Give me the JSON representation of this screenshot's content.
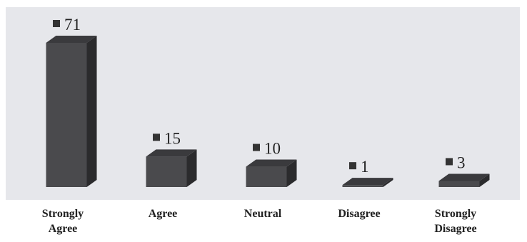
{
  "chart_data": {
    "type": "bar",
    "style": "3d-columns",
    "categories": [
      "Strongly Agree",
      "Agree",
      "Neutral",
      "Disagree",
      "Strongly Disagree"
    ],
    "category_lines": [
      [
        "Strongly",
        "Agree"
      ],
      [
        "Agree"
      ],
      [
        "Neutral"
      ],
      [
        "Disagree"
      ],
      [
        "Strongly",
        "Disagree"
      ]
    ],
    "values": [
      71,
      15,
      10,
      1,
      3
    ],
    "value_labels": [
      "71",
      "15",
      "10",
      "1",
      "3"
    ],
    "data_labels": true,
    "ylim": [
      0,
      71
    ],
    "grid": false,
    "legend": "none",
    "colors": {
      "plot_background": "#e6e7eb",
      "bar_front": "#4a4a4d",
      "bar_top": "#3a3a3d",
      "bar_side": "#2b2b2d",
      "label_marker": "#333333"
    }
  }
}
